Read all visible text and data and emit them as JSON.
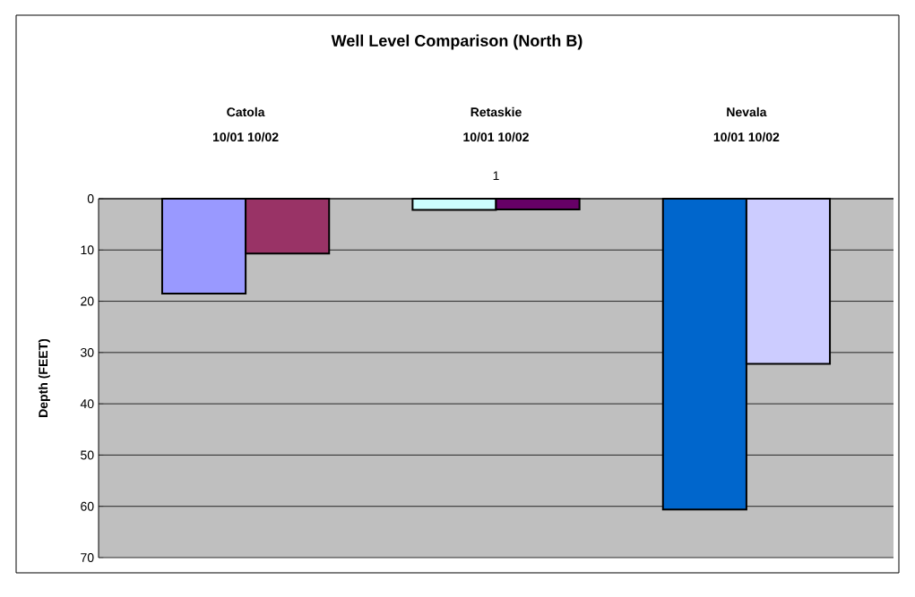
{
  "chart_data": {
    "type": "bar",
    "title": "Well Level Comparison (North B)",
    "ylabel": "Depth (FEET)",
    "categories": [
      "1"
    ],
    "series": [
      {
        "color": "#9999ff",
        "values": [
          18.5
        ]
      },
      {
        "color": "#993366",
        "values": [
          10.7
        ]
      },
      {
        "values": [
          null
        ]
      },
      {
        "color": "#ccffff",
        "values": [
          2.2
        ]
      },
      {
        "color": "#660066",
        "values": [
          2.1
        ]
      },
      {
        "values": [
          null
        ]
      },
      {
        "color": "#0066cc",
        "values": [
          60.6
        ]
      },
      {
        "color": "#ccccff",
        "values": [
          32.2
        ]
      }
    ],
    "annotations": [
      "Catola",
      "10/01 10/02",
      "Retaskie",
      "10/01 10/02",
      "Nevala",
      "10/01 10/02"
    ],
    "ylim": [
      70,
      0
    ],
    "yticks": [
      0,
      10,
      20,
      30,
      40,
      50,
      60,
      70
    ],
    "grid": "y"
  }
}
